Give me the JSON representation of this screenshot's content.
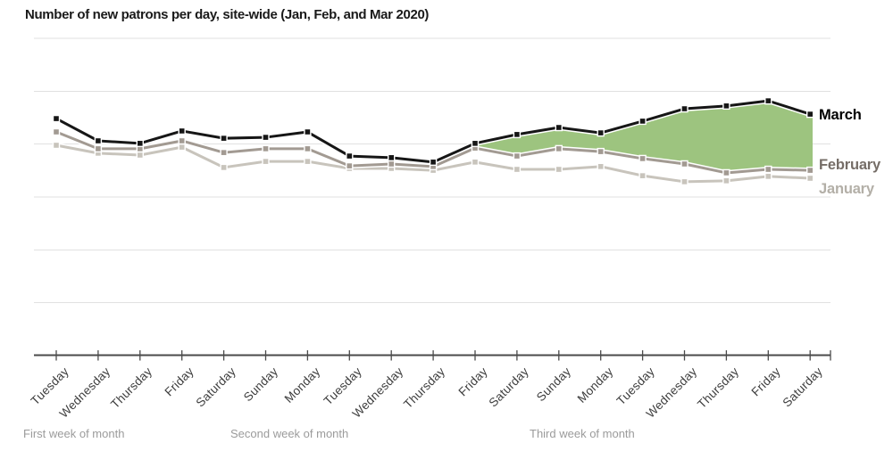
{
  "chart_data": {
    "type": "line",
    "title": "Number of new patrons per day, site-wide (Jan, Feb, and Mar 2020)",
    "x_tick_labels": [
      "Tuesday",
      "Wednesday",
      "Thursday",
      "Friday",
      "Saturday",
      "Sunday",
      "Monday",
      "Tuesday",
      "Wednesday",
      "Thursday",
      "Friday",
      "Saturday",
      "Sunday",
      "Monday",
      "Tuesday",
      "Wednesday",
      "Thursday",
      "Friday",
      "Saturday"
    ],
    "week_annotations": [
      "First week of month",
      "Second week of month",
      "Third week of month"
    ],
    "y_axis_note": "no numeric tick labels shown; values are relative units (top gridline = 100)",
    "ylim": [
      0,
      100
    ],
    "y_gridline_values": [
      16.7,
      33.3,
      50,
      66.7,
      83.3,
      100
    ],
    "grid": true,
    "legend_position": "direct-labels-right-of-last-point",
    "series": [
      {
        "name": "January",
        "color": "#c8c4bc",
        "label_color": "#b3afa7",
        "values": [
          66.3,
          63.8,
          63.2,
          65.7,
          59.3,
          61.2,
          61.2,
          59.0,
          59.0,
          58.4,
          61.0,
          58.7,
          58.7,
          59.6,
          56.7,
          54.8,
          55.1,
          56.5,
          55.9
        ]
      },
      {
        "name": "February",
        "color": "#a29a92",
        "label_color": "#756d67",
        "values": [
          70.5,
          65.2,
          65.2,
          67.7,
          64.0,
          65.2,
          65.2,
          59.8,
          60.4,
          59.6,
          65.4,
          62.9,
          65.2,
          64.3,
          62.1,
          60.4,
          57.6,
          58.7,
          58.4
        ]
      },
      {
        "name": "March",
        "color": "#161616",
        "label_color": "#000000",
        "values": [
          74.7,
          67.7,
          66.9,
          70.8,
          68.5,
          68.8,
          70.5,
          62.9,
          62.4,
          61.0,
          66.9,
          69.7,
          71.9,
          70.2,
          73.9,
          77.8,
          78.7,
          80.3,
          76.1
        ]
      }
    ],
    "area_fill": {
      "upper_series": "March",
      "lower_series": "February",
      "from_index": 10,
      "to_index": 18,
      "color": "#9dc47f"
    },
    "axis_color": "#4a4a4a"
  }
}
